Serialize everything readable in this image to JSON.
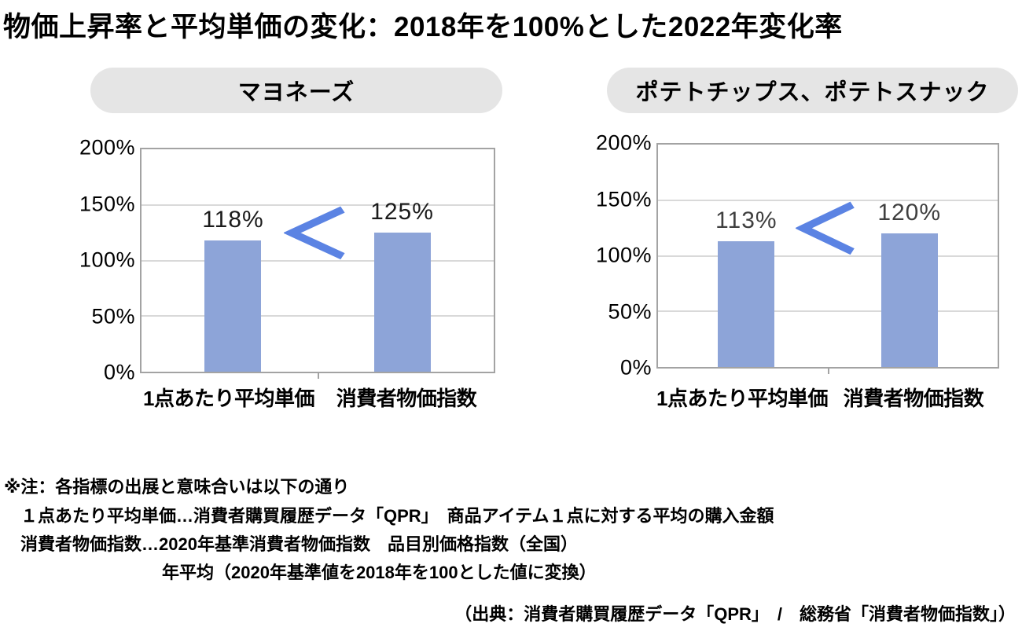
{
  "page": {
    "title": "物価上昇率と平均単価の変化：2018年を100%とした2022年変化率",
    "source": "（出典：消費者購買履歴データ「QPR」　/　総務省「消費者物価指数」）"
  },
  "notes": {
    "line1": "※注：各指標の出展と意味合いは以下の通り",
    "line2": "１点あたり平均単価…消費者購買履歴データ「QPR」　商品アイテム１点に対する平均の購入金額",
    "line3": "消費者物価指数…2020年基準消費者物価指数　品目別価格指数（全国）",
    "line4": "年平均（2020年基準値を2018年を100とした値に変換）"
  },
  "colors": {
    "bar": "#8da4d8",
    "less_than_symbol": "#5b83e3",
    "pill_background": "#e5e5e5",
    "gridline": "#d9d9d9",
    "plot_border": "#a3a3a3"
  },
  "chart_data": [
    {
      "type": "bar",
      "title": "マヨネーズ",
      "categories": [
        "1点あたり平均単価",
        "消費者物価指数"
      ],
      "values": [
        118,
        125
      ],
      "value_labels": [
        "118%",
        "125%"
      ],
      "value_label_color": "#1b1b1b",
      "ylim": [
        0,
        200
      ],
      "yticks": [
        "200%",
        "150%",
        "100%",
        "50%",
        "0%"
      ],
      "ytick_values": [
        200,
        150,
        100,
        50,
        0
      ],
      "grid": true,
      "legend": "none",
      "annotation_symbol": "<",
      "comparison": "118% < 125%"
    },
    {
      "type": "bar",
      "title": "ポテトチップス、ポテトスナック",
      "categories": [
        "1点あたり平均単価",
        "消費者物価指数"
      ],
      "values": [
        113,
        120
      ],
      "value_labels": [
        "113%",
        "120%"
      ],
      "value_label_color": "#3f3f3f",
      "ylim": [
        0,
        200
      ],
      "yticks": [
        "200%",
        "150%",
        "100%",
        "50%",
        "0%"
      ],
      "ytick_values": [
        200,
        150,
        100,
        50,
        0
      ],
      "grid": true,
      "legend": "none",
      "annotation_symbol": "<",
      "comparison": "113% < 120%"
    }
  ]
}
